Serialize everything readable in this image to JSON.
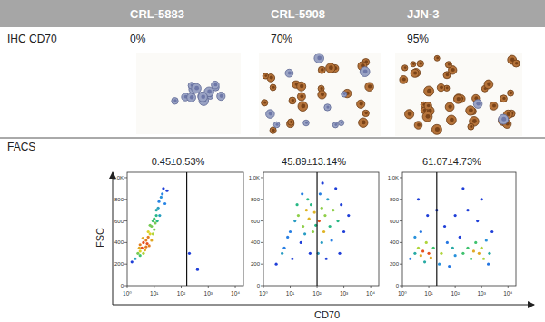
{
  "header": {
    "columns": [
      "CRL-5883",
      "CRL-5908",
      "JJN-3"
    ]
  },
  "ihc": {
    "label": "IHC CD70",
    "panels": [
      {
        "value": 0,
        "label": "0%"
      },
      {
        "value": 70,
        "label": "70%"
      },
      {
        "value": 95,
        "label": "95%"
      }
    ]
  },
  "facs": {
    "label": "FACS",
    "x_label": "CD70",
    "y_label": "FSC"
  },
  "chart_data": [
    {
      "type": "scatter",
      "title": "0.45±0.53%",
      "log": "x",
      "grid": false,
      "marker": "dot",
      "color": "#1f3fd8",
      "gate": 160,
      "xlim": [
        1,
        20000
      ],
      "ylim": [
        0,
        1050
      ],
      "xticks": [
        {
          "value": 1,
          "label": "10⁰"
        },
        {
          "value": 10,
          "label": "10¹"
        },
        {
          "value": 100,
          "label": "10²"
        },
        {
          "value": 1000,
          "label": "10³"
        },
        {
          "value": 10000,
          "label": "10⁴"
        }
      ],
      "yticks": [
        0,
        200,
        400,
        600,
        800,
        {
          "value": 1000,
          "label": "1.0K"
        }
      ],
      "x": [
        2,
        2.5,
        3,
        3,
        3.5,
        4,
        4,
        5,
        5,
        6,
        6,
        7,
        8,
        8,
        9,
        10,
        10,
        12,
        12,
        14,
        15,
        16,
        18,
        20,
        22,
        25,
        3,
        4.5,
        5.5,
        7,
        9,
        11,
        13,
        6.5,
        2.8,
        3.8,
        200,
        400,
        1.5,
        30
      ],
      "values": [
        250,
        300,
        320,
        380,
        350,
        400,
        300,
        420,
        360,
        450,
        500,
        480,
        550,
        420,
        600,
        620,
        520,
        650,
        700,
        720,
        780,
        650,
        820,
        850,
        900,
        760,
        280,
        330,
        390,
        560,
        480,
        580,
        600,
        370,
        350,
        440,
        300,
        150,
        220,
        880
      ]
    },
    {
      "type": "scatter",
      "title": "45.89±13.14%",
      "log": "x",
      "grid": false,
      "marker": "dot",
      "color": "#1f3fd8",
      "gate": 100,
      "xlim": [
        1,
        20000
      ],
      "ylim": [
        0,
        1050
      ],
      "xticks": [
        {
          "value": 1,
          "label": "10⁰"
        },
        {
          "value": 10,
          "label": "10¹"
        },
        {
          "value": 100,
          "label": "10²"
        },
        {
          "value": 1000,
          "label": "10³"
        },
        {
          "value": 10000,
          "label": "10⁴"
        }
      ],
      "yticks": [
        0,
        200,
        400,
        600,
        800,
        {
          "value": 1000,
          "label": "1.0K"
        }
      ],
      "x": [
        5,
        8,
        10,
        15,
        20,
        30,
        40,
        50,
        60,
        70,
        25,
        35,
        45,
        80,
        90,
        120,
        150,
        180,
        200,
        250,
        300,
        400,
        500,
        150,
        110,
        130,
        600,
        800,
        1000,
        220,
        3,
        6,
        12,
        18,
        28,
        55,
        160,
        350,
        700,
        1500
      ],
      "values": [
        300,
        450,
        500,
        600,
        650,
        550,
        700,
        620,
        750,
        500,
        400,
        480,
        800,
        680,
        560,
        600,
        720,
        500,
        650,
        800,
        550,
        700,
        900,
        400,
        300,
        850,
        600,
        750,
        500,
        250,
        200,
        350,
        250,
        750,
        850,
        300,
        950,
        420,
        300,
        650
      ]
    },
    {
      "type": "scatter",
      "title": "61.07±4.73%",
      "log": "x",
      "grid": false,
      "marker": "dot",
      "color": "#1f3fd8",
      "gate": 20,
      "xlim": [
        1,
        20000
      ],
      "ylim": [
        0,
        1050
      ],
      "xticks": [
        {
          "value": 1,
          "label": "10⁰"
        },
        {
          "value": 10,
          "label": "10¹"
        },
        {
          "value": 100,
          "label": "10²"
        },
        {
          "value": 1000,
          "label": "10³"
        },
        {
          "value": 10000,
          "label": "10⁴"
        }
      ],
      "yticks": [
        0,
        200,
        400,
        600,
        800,
        {
          "value": 1000,
          "label": "1.0K"
        }
      ],
      "x": [
        2,
        3,
        4,
        5,
        6,
        8,
        10,
        3,
        5,
        7,
        12,
        15,
        30,
        50,
        80,
        100,
        150,
        200,
        300,
        400,
        500,
        600,
        800,
        1000,
        1200,
        1500,
        2000,
        700,
        300,
        100,
        40,
        1000,
        2500,
        200,
        20,
        9,
        4,
        25,
        60,
        1800
      ],
      "values": [
        250,
        300,
        350,
        280,
        320,
        400,
        300,
        450,
        500,
        220,
        260,
        350,
        300,
        400,
        350,
        280,
        450,
        300,
        350,
        250,
        320,
        400,
        300,
        350,
        250,
        420,
        300,
        600,
        700,
        650,
        550,
        800,
        500,
        900,
        700,
        650,
        800,
        200,
        180,
        200
      ]
    }
  ]
}
